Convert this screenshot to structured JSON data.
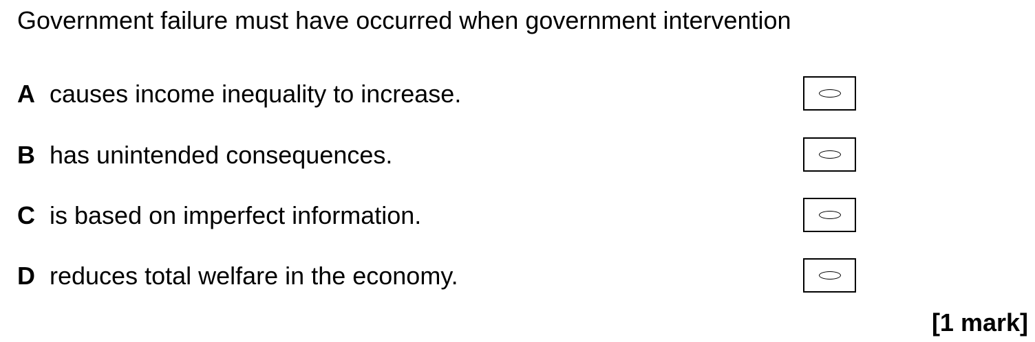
{
  "question": {
    "stem": "Government failure must have occurred when government intervention"
  },
  "options": [
    {
      "letter": "A",
      "text": "causes income inequality to increase."
    },
    {
      "letter": "B",
      "text": "has unintended consequences."
    },
    {
      "letter": "C",
      "text": "is based on imperfect information."
    },
    {
      "letter": "D",
      "text": "reduces total welfare in the economy."
    }
  ],
  "marks": {
    "label": "[1 mark]"
  },
  "icons": {
    "answer_bubble": "oval-bubble-icon"
  },
  "colors": {
    "text": "#000000",
    "background": "#ffffff"
  }
}
